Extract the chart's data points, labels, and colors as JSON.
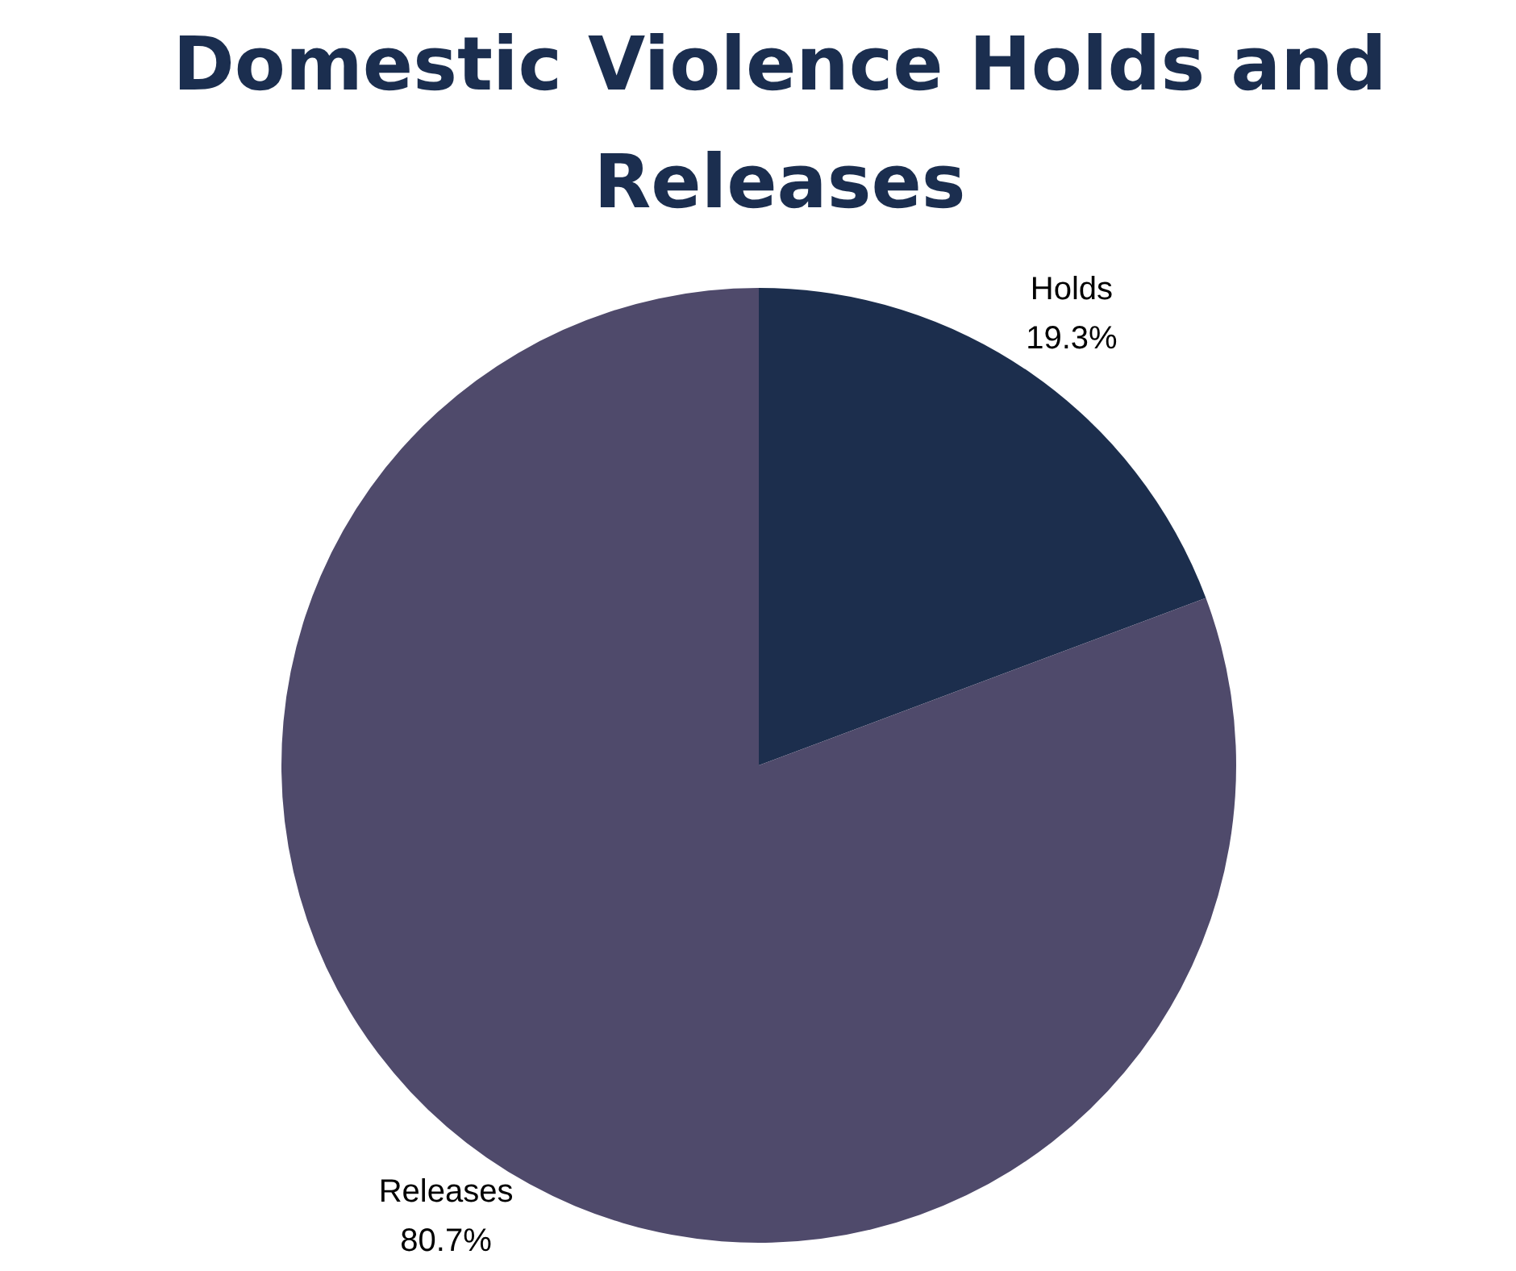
{
  "chart_data": {
    "type": "pie",
    "title": "Domestic Violence Holds and Releases",
    "categories": [
      "Holds",
      "Releases"
    ],
    "values": [
      19.3,
      80.7
    ],
    "colors": [
      "#1c2e4d",
      "#4f4a6b"
    ],
    "value_labels": [
      "19.3%",
      "80.7%"
    ],
    "legend": false
  }
}
